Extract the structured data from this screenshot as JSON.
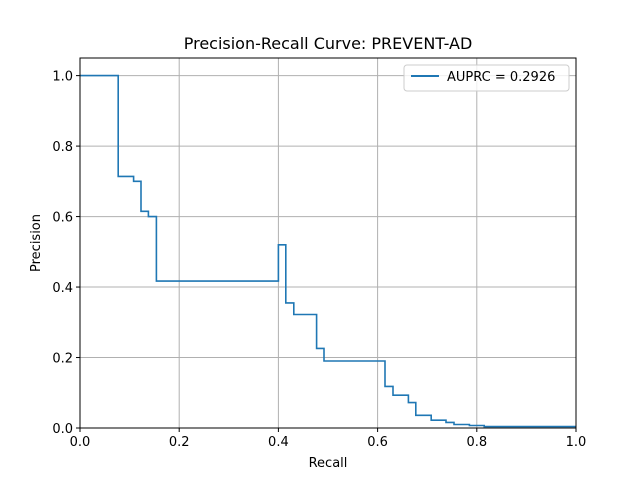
{
  "chart_data": {
    "type": "line",
    "title": "Precision-Recall Curve: PREVENT-AD",
    "xlabel": "Recall",
    "ylabel": "Precision",
    "xlim": [
      0.0,
      1.0
    ],
    "ylim": [
      0.0,
      1.05
    ],
    "xticks": [
      "0.0",
      "0.2",
      "0.4",
      "0.6",
      "0.8",
      "1.0"
    ],
    "yticks": [
      "0.0",
      "0.2",
      "0.4",
      "0.6",
      "0.8",
      "1.0"
    ],
    "grid": true,
    "legend_position": "upper-right",
    "step": true,
    "series": [
      {
        "name": "AUPRC = 0.2926",
        "color": "#1f77b4",
        "x": [
          0.0,
          0.077,
          0.077,
          0.108,
          0.108,
          0.123,
          0.123,
          0.138,
          0.138,
          0.154,
          0.154,
          0.4,
          0.4,
          0.415,
          0.415,
          0.431,
          0.431,
          0.477,
          0.477,
          0.492,
          0.492,
          0.615,
          0.615,
          0.631,
          0.631,
          0.662,
          0.662,
          0.677,
          0.677,
          0.708,
          0.708,
          0.738,
          0.738,
          0.754,
          0.754,
          0.785,
          0.785,
          0.815,
          0.815,
          1.0
        ],
        "y": [
          1.0,
          1.0,
          0.714,
          0.714,
          0.7,
          0.7,
          0.615,
          0.615,
          0.6,
          0.6,
          0.417,
          0.417,
          0.52,
          0.52,
          0.355,
          0.355,
          0.322,
          0.322,
          0.226,
          0.226,
          0.19,
          0.19,
          0.118,
          0.118,
          0.093,
          0.093,
          0.072,
          0.072,
          0.036,
          0.036,
          0.022,
          0.022,
          0.016,
          0.016,
          0.01,
          0.01,
          0.007,
          0.007,
          0.004,
          0.004
        ]
      }
    ]
  }
}
